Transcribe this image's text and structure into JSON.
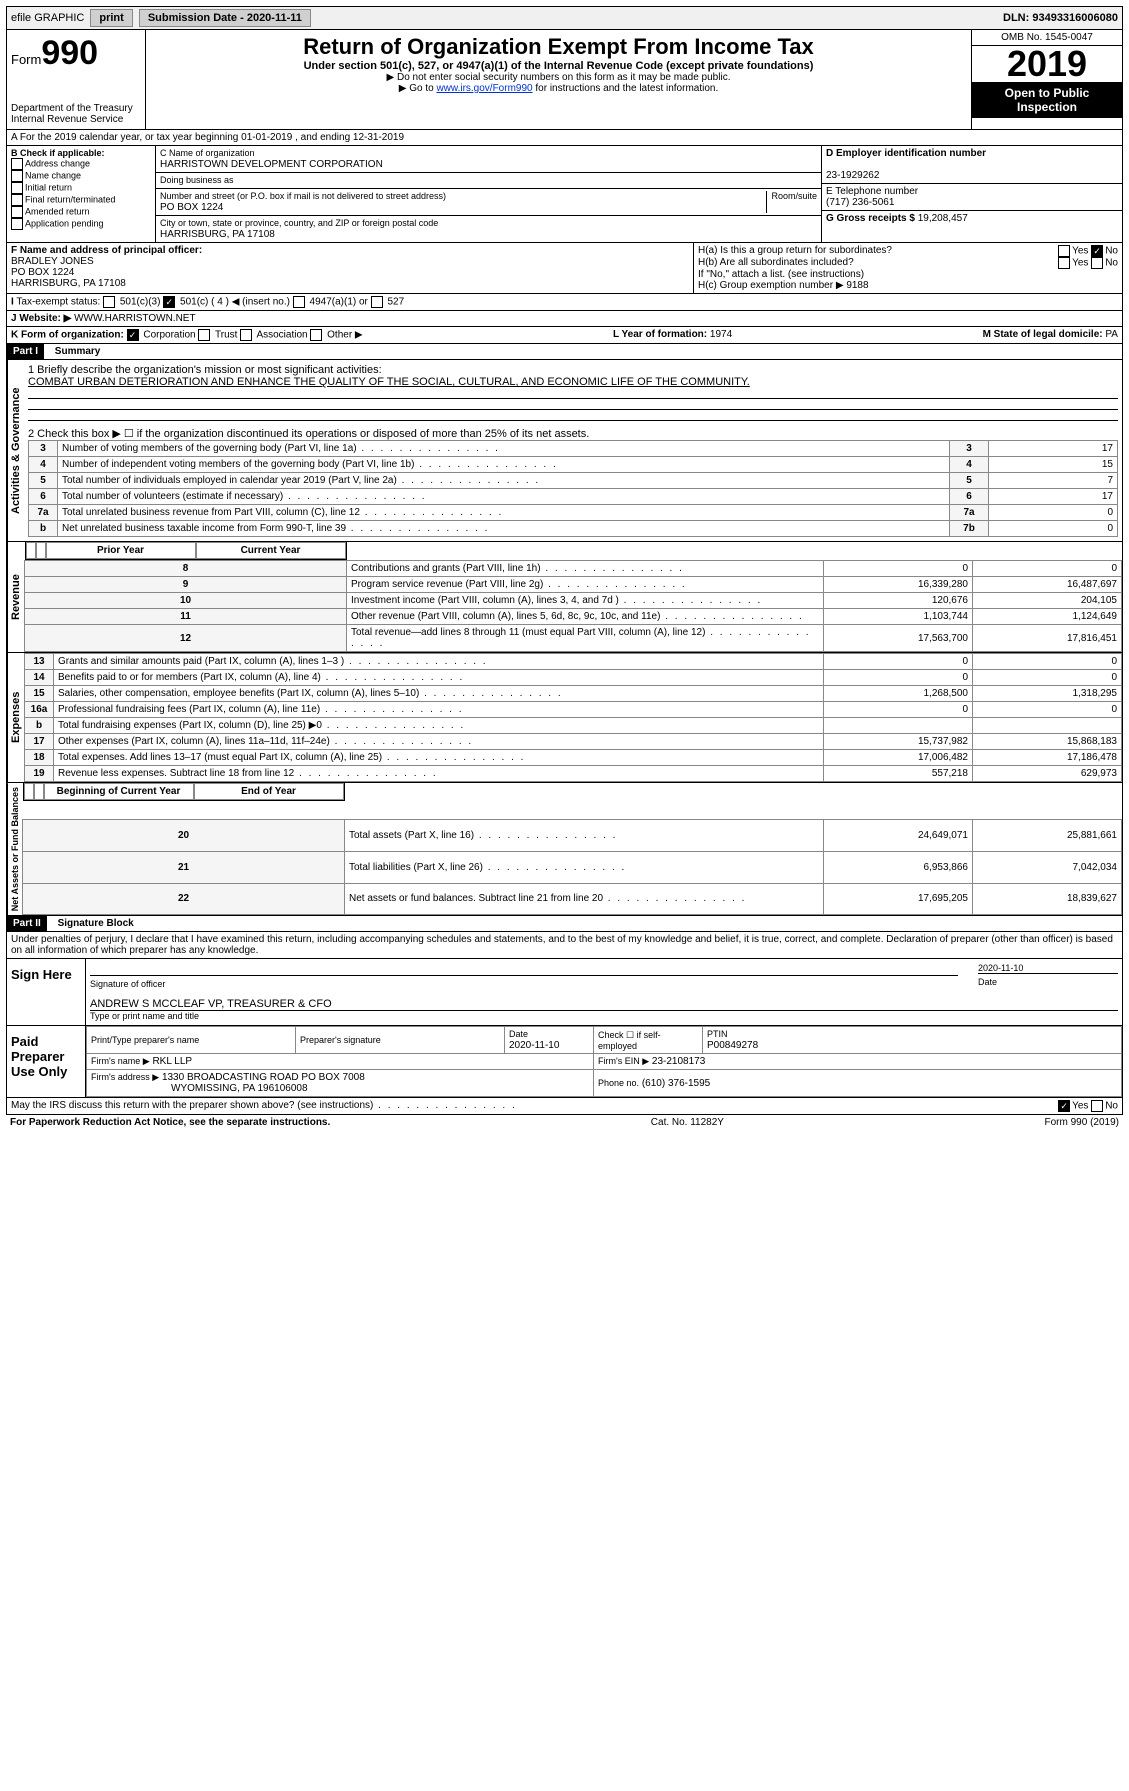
{
  "topbar": {
    "efile": "efile GRAPHIC",
    "print": "print",
    "subdate_label": "Submission Date - 2020-11-11",
    "dln": "DLN: 93493316006080"
  },
  "header": {
    "form_prefix": "Form",
    "form_number": "990",
    "dept": "Department of the Treasury\nInternal Revenue Service",
    "title": "Return of Organization Exempt From Income Tax",
    "sub": "Under section 501(c), 527, or 4947(a)(1) of the Internal Revenue Code (except private foundations)",
    "note1": "▶ Do not enter social security numbers on this form as it may be made public.",
    "note2_pre": "▶ Go to ",
    "note2_link": "www.irs.gov/Form990",
    "note2_post": " for instructions and the latest information.",
    "omb": "OMB No. 1545-0047",
    "year": "2019",
    "insp": "Open to Public Inspection"
  },
  "lineA": "A For the 2019 calendar year, or tax year beginning 01-01-2019   , and ending 12-31-2019",
  "boxB": {
    "label": "B Check if applicable:",
    "items": [
      "Address change",
      "Name change",
      "Initial return",
      "Final return/terminated",
      "Amended return",
      "Application pending"
    ]
  },
  "boxC": {
    "name_label": "C Name of organization",
    "name": "HARRISTOWN DEVELOPMENT CORPORATION",
    "dba": "Doing business as",
    "addr_label": "Number and street (or P.O. box if mail is not delivered to street address)",
    "room": "Room/suite",
    "addr": "PO BOX 1224",
    "city_label": "City or town, state or province, country, and ZIP or foreign postal code",
    "city": "HARRISBURG, PA  17108"
  },
  "boxD": {
    "label": "D Employer identification number",
    "val": "23-1929262"
  },
  "boxE": {
    "label": "E Telephone number",
    "val": "(717) 236-5061"
  },
  "boxG": {
    "label": "G Gross receipts $",
    "val": "19,208,457"
  },
  "boxF": {
    "label": "F  Name and address of principal officer:",
    "name": "BRADLEY JONES",
    "addr": "PO BOX 1224",
    "city": "HARRISBURG, PA  17108"
  },
  "boxH": {
    "a": "H(a)  Is this a group return for subordinates?",
    "b": "H(b)  Are all subordinates included?",
    "bnote": "If \"No,\" attach a list. (see instructions)",
    "c": "H(c)  Group exemption number ▶",
    "cval": "9188"
  },
  "boxI": {
    "label": "Tax-exempt status:",
    "opts": [
      "501(c)(3)",
      "501(c) ( 4 ) ◀ (insert no.)",
      "4947(a)(1) or",
      "527"
    ]
  },
  "boxJ": {
    "label": "Website: ▶",
    "val": "WWW.HARRISTOWN.NET"
  },
  "boxK": {
    "label": "K Form of organization:",
    "opts": [
      "Corporation",
      "Trust",
      "Association",
      "Other ▶"
    ]
  },
  "boxL": {
    "label": "L Year of formation:",
    "val": "1974"
  },
  "boxM": {
    "label": "M State of legal domicile:",
    "val": "PA"
  },
  "part1": {
    "title": "Part I",
    "sub": "Summary",
    "q1": "1  Briefly describe the organization's mission or most significant activities:",
    "a1": "COMBAT URBAN DETERIORATION AND ENHANCE THE QUALITY OF THE SOCIAL, CULTURAL, AND ECONOMIC LIFE OF THE COMMUNITY.",
    "q2": "2  Check this box ▶ ☐  if the organization discontinued its operations or disposed of more than 25% of its net assets.",
    "gov_label": "Activities & Governance",
    "rev_label": "Revenue",
    "exp_label": "Expenses",
    "net_label": "Net Assets or Fund Balances",
    "gov_rows": [
      {
        "n": "3",
        "t": "Number of voting members of the governing body (Part VI, line 1a)",
        "box": "3",
        "v": "17"
      },
      {
        "n": "4",
        "t": "Number of independent voting members of the governing body (Part VI, line 1b)",
        "box": "4",
        "v": "15"
      },
      {
        "n": "5",
        "t": "Total number of individuals employed in calendar year 2019 (Part V, line 2a)",
        "box": "5",
        "v": "7"
      },
      {
        "n": "6",
        "t": "Total number of volunteers (estimate if necessary)",
        "box": "6",
        "v": "17"
      },
      {
        "n": "7a",
        "t": "Total unrelated business revenue from Part VIII, column (C), line 12",
        "box": "7a",
        "v": "0"
      },
      {
        "n": "b",
        "t": "Net unrelated business taxable income from Form 990-T, line 39",
        "box": "7b",
        "v": "0"
      }
    ],
    "col_prior": "Prior Year",
    "col_curr": "Current Year",
    "rev_rows": [
      {
        "n": "8",
        "t": "Contributions and grants (Part VIII, line 1h)",
        "p": "0",
        "c": "0"
      },
      {
        "n": "9",
        "t": "Program service revenue (Part VIII, line 2g)",
        "p": "16,339,280",
        "c": "16,487,697"
      },
      {
        "n": "10",
        "t": "Investment income (Part VIII, column (A), lines 3, 4, and 7d )",
        "p": "120,676",
        "c": "204,105"
      },
      {
        "n": "11",
        "t": "Other revenue (Part VIII, column (A), lines 5, 6d, 8c, 9c, 10c, and 11e)",
        "p": "1,103,744",
        "c": "1,124,649"
      },
      {
        "n": "12",
        "t": "Total revenue—add lines 8 through 11 (must equal Part VIII, column (A), line 12)",
        "p": "17,563,700",
        "c": "17,816,451"
      }
    ],
    "exp_rows": [
      {
        "n": "13",
        "t": "Grants and similar amounts paid (Part IX, column (A), lines 1–3 )",
        "p": "0",
        "c": "0"
      },
      {
        "n": "14",
        "t": "Benefits paid to or for members (Part IX, column (A), line 4)",
        "p": "0",
        "c": "0"
      },
      {
        "n": "15",
        "t": "Salaries, other compensation, employee benefits (Part IX, column (A), lines 5–10)",
        "p": "1,268,500",
        "c": "1,318,295"
      },
      {
        "n": "16a",
        "t": "Professional fundraising fees (Part IX, column (A), line 11e)",
        "p": "0",
        "c": "0"
      },
      {
        "n": "b",
        "t": "Total fundraising expenses (Part IX, column (D), line 25) ▶0",
        "p": "",
        "c": ""
      },
      {
        "n": "17",
        "t": "Other expenses (Part IX, column (A), lines 11a–11d, 11f–24e)",
        "p": "15,737,982",
        "c": "15,868,183"
      },
      {
        "n": "18",
        "t": "Total expenses. Add lines 13–17 (must equal Part IX, column (A), line 25)",
        "p": "17,006,482",
        "c": "17,186,478"
      },
      {
        "n": "19",
        "t": "Revenue less expenses. Subtract line 18 from line 12",
        "p": "557,218",
        "c": "629,973"
      }
    ],
    "col_beg": "Beginning of Current Year",
    "col_end": "End of Year",
    "net_rows": [
      {
        "n": "20",
        "t": "Total assets (Part X, line 16)",
        "p": "24,649,071",
        "c": "25,881,661"
      },
      {
        "n": "21",
        "t": "Total liabilities (Part X, line 26)",
        "p": "6,953,866",
        "c": "7,042,034"
      },
      {
        "n": "22",
        "t": "Net assets or fund balances. Subtract line 21 from line 20",
        "p": "17,695,205",
        "c": "18,839,627"
      }
    ]
  },
  "part2": {
    "title": "Part II",
    "sub": "Signature Block",
    "decl": "Under penalties of perjury, I declare that I have examined this return, including accompanying schedules and statements, and to the best of my knowledge and belief, it is true, correct, and complete. Declaration of preparer (other than officer) is based on all information of which preparer has any knowledge.",
    "sign_here": "Sign Here",
    "sig_of": "Signature of officer",
    "date": "Date",
    "sig_date": "2020-11-10",
    "officer": "ANDREW S MCCLEAF  VP, TREASURER & CFO",
    "type_name": "Type or print name and title",
    "paid": "Paid Preparer Use Only",
    "prep_name_l": "Print/Type preparer's name",
    "prep_sig_l": "Preparer's signature",
    "prep_date_l": "Date",
    "prep_date": "2020-11-10",
    "check_se": "Check ☐ if self-employed",
    "ptin_l": "PTIN",
    "ptin": "P00849278",
    "firm_name_l": "Firm's name   ▶",
    "firm_name": "RKL LLP",
    "firm_ein_l": "Firm's EIN ▶",
    "firm_ein": "23-2108173",
    "firm_addr_l": "Firm's address ▶",
    "firm_addr": "1330 BROADCASTING ROAD PO BOX 7008",
    "firm_city": "WYOMISSING, PA  196106008",
    "phone_l": "Phone no.",
    "phone": "(610) 376-1595",
    "discuss": "May the IRS discuss this return with the preparer shown above? (see instructions)",
    "paperwork": "For Paperwork Reduction Act Notice, see the separate instructions.",
    "cat": "Cat. No. 11282Y",
    "formfoot": "Form 990 (2019)"
  },
  "yesno": {
    "yes": "Yes",
    "no": "No"
  }
}
